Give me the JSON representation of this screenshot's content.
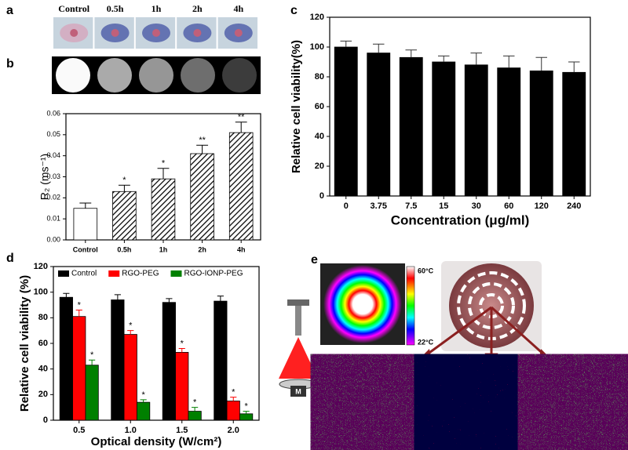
{
  "panel_a": {
    "label": "a",
    "columns": [
      "Control",
      "0.5h",
      "1h",
      "2h",
      "4h"
    ]
  },
  "panel_e": {
    "label": "e",
    "colorbar_max": "60°C",
    "colorbar_min": "22°C",
    "device_label": "M"
  },
  "chart_data": [
    {
      "type": "bar",
      "label": "b",
      "ylabel": "R₂ (ms⁻¹)",
      "categories": [
        "Control",
        "0.5h",
        "1h",
        "2h",
        "4h"
      ],
      "values": [
        0.015,
        0.023,
        0.029,
        0.041,
        0.051
      ],
      "errors": [
        0.0025,
        0.003,
        0.005,
        0.004,
        0.005
      ],
      "value_labels": [
        null,
        "*",
        "*",
        "**",
        "**"
      ],
      "ylim": [
        0,
        0.06
      ],
      "yticks": [
        {
          "value": 0,
          "label": "0.00"
        },
        {
          "value": 0.01,
          "label": "0.01"
        },
        {
          "value": 0.02,
          "label": "0.02"
        },
        {
          "value": 0.03,
          "label": "0.03"
        },
        {
          "value": 0.04,
          "label": "0.04"
        },
        {
          "value": 0.05,
          "label": "0.05"
        },
        {
          "value": 0.06,
          "label": "0.06"
        }
      ],
      "color": "#000000"
    },
    {
      "type": "bar",
      "label": "c",
      "ylabel": "Relative cell viability(%)",
      "xlabel": "Concentration (μg/ml)",
      "categories": [
        "0",
        "3.75",
        "7.5",
        "15",
        "30",
        "60",
        "120",
        "240"
      ],
      "values": [
        100,
        96,
        93,
        90,
        88,
        86,
        84,
        83
      ],
      "errors": [
        4,
        6,
        5,
        4,
        8,
        8,
        9,
        7
      ],
      "ylim": [
        0,
        120
      ],
      "yticks": [
        0,
        20,
        40,
        60,
        80,
        100,
        120
      ],
      "color": "#000000"
    },
    {
      "type": "bar",
      "label": "d",
      "ylabel": "Relative cell viability (%)",
      "xlabel": "Optical density (W/cm²)",
      "categories": [
        "0.5",
        "1.0",
        "1.5",
        "2.0"
      ],
      "series": [
        {
          "name": "Control",
          "color": "#000000",
          "values": [
            96,
            94,
            92,
            93
          ],
          "errors": [
            3,
            4,
            3,
            4
          ]
        },
        {
          "name": "RGO-PEG",
          "color": "#ff0000",
          "values": [
            81,
            67,
            53,
            15
          ],
          "errors": [
            5,
            3,
            3,
            3
          ],
          "value_labels": [
            "*",
            "*",
            "*",
            "*"
          ]
        },
        {
          "name": "RGO-IONP-PEG",
          "color": "#008000",
          "values": [
            43,
            14,
            7,
            5
          ],
          "errors": [
            4,
            2,
            3,
            2
          ],
          "value_labels": [
            "*",
            "*",
            "*",
            "*"
          ]
        }
      ],
      "ylim": [
        0,
        120
      ],
      "yticks": [
        0,
        20,
        40,
        60,
        80,
        100,
        120
      ],
      "legend": "top"
    }
  ]
}
